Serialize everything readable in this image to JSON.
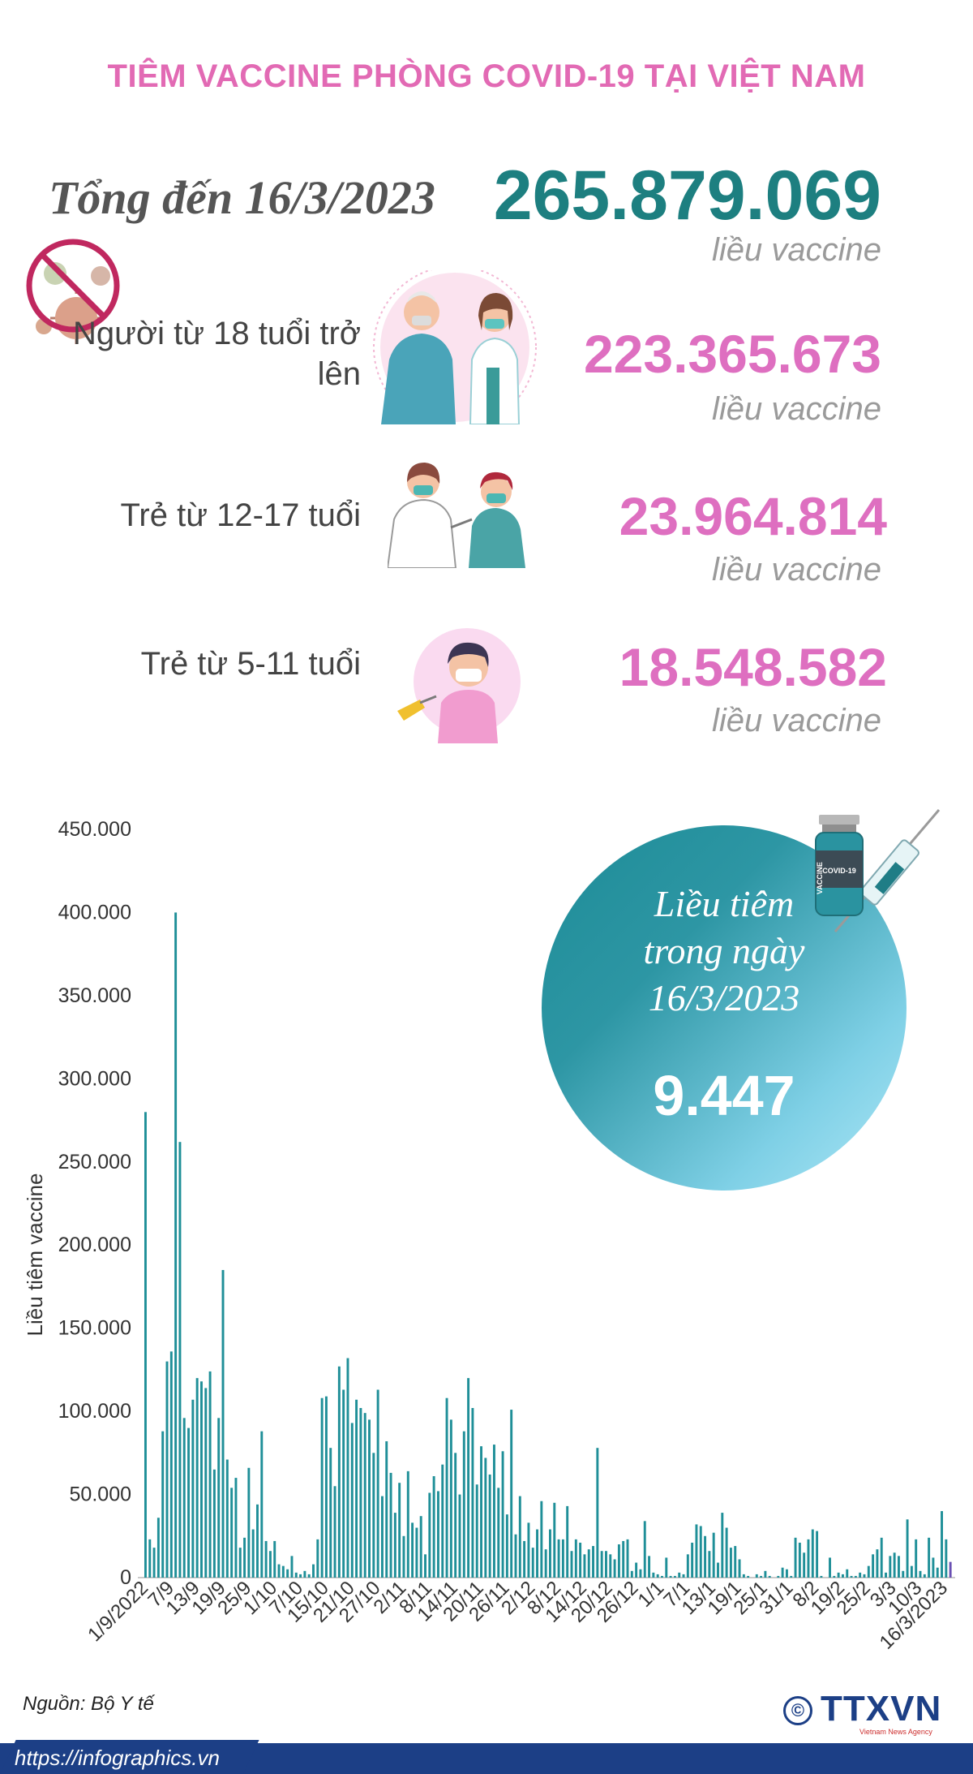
{
  "title": "TIÊM VACCINE PHÒNG COVID-19 TẠI VIỆT NAM",
  "total": {
    "label": "Tổng đến 16/3/2023",
    "value": "265.879.069",
    "unit": "liều vaccine"
  },
  "groups": [
    {
      "label": "Người từ 18 tuổi trở lên",
      "value": "223.365.673",
      "unit": "liều vaccine"
    },
    {
      "label": "Trẻ từ 12-17 tuổi",
      "value": "23.964.814",
      "unit": "liều vaccine"
    },
    {
      "label": "Trẻ từ 5-11 tuổi",
      "value": "18.548.582",
      "unit": "liều vaccine"
    }
  ],
  "daily": {
    "label_lines": [
      "Liều tiêm",
      "trong ngày",
      "16/3/2023"
    ],
    "value": "9.447"
  },
  "vial_label": "COVID-19",
  "vial_side_label": "VACCINE",
  "source": "Nguồn: Bộ Y tế",
  "footer": {
    "url": "https://infographics.vn",
    "brand": "TTXVN",
    "brand_sub": "Vietnam News Agency",
    "copyright": "©"
  },
  "colors": {
    "title": "#e26ab4",
    "total": "#1d7f80",
    "group_value": "#de6fc0",
    "bar": "#1f8f98",
    "footer": "#1c3f86"
  },
  "chart_data": {
    "type": "bar",
    "ylabel": "Liều tiêm vaccine",
    "xlabel": "",
    "ylim": [
      0,
      450000
    ],
    "yticks": [
      0,
      50000,
      100000,
      150000,
      200000,
      250000,
      300000,
      350000,
      400000,
      450000
    ],
    "ytick_labels": [
      "0",
      "50.000",
      "100.000",
      "150.000",
      "200.000",
      "250.000",
      "300.000",
      "350.000",
      "400.000",
      "450.000"
    ],
    "xtick_labels": [
      "1/9/2022",
      "7/9",
      "13/9",
      "19/9",
      "25/9",
      "1/10",
      "7/10",
      "15/10",
      "21/10",
      "27/10",
      "2/11",
      "8/11",
      "14/11",
      "20/11",
      "26/11",
      "2/12",
      "8/12",
      "14/12",
      "20/12",
      "26/12",
      "1/1",
      "7/1",
      "13/1",
      "19/1",
      "25/1",
      "31/1",
      "8/2",
      "19/2",
      "25/2",
      "3/3",
      "10/3",
      "16/3/2023"
    ],
    "values": [
      280000,
      23000,
      18000,
      36000,
      88000,
      130000,
      136000,
      400000,
      262000,
      96000,
      90000,
      107000,
      120000,
      118000,
      114000,
      124000,
      65000,
      96000,
      185000,
      71000,
      54000,
      60000,
      18000,
      24000,
      66000,
      29000,
      44000,
      88000,
      22000,
      16000,
      22000,
      8000,
      7000,
      5000,
      13000,
      3000,
      2000,
      4000,
      2000,
      8000,
      23000,
      108000,
      109000,
      78000,
      55000,
      127000,
      113000,
      132000,
      93000,
      107000,
      102000,
      99000,
      95000,
      75000,
      113000,
      49000,
      82000,
      63000,
      39000,
      57000,
      25000,
      64000,
      33000,
      30000,
      37000,
      14000,
      51000,
      61000,
      52000,
      68000,
      108000,
      95000,
      75000,
      50000,
      88000,
      120000,
      102000,
      56000,
      79000,
      72000,
      62000,
      80000,
      54000,
      76000,
      38000,
      101000,
      26000,
      49000,
      22000,
      33000,
      18000,
      29000,
      46000,
      17000,
      29000,
      45000,
      23000,
      23000,
      43000,
      16000,
      23000,
      21000,
      14000,
      17000,
      19000,
      78000,
      16000,
      16000,
      14000,
      11000,
      20000,
      22000,
      23000,
      4000,
      9000,
      5000,
      34000,
      13000,
      3000,
      2000,
      1000,
      12000,
      1000,
      1000,
      3000,
      2000,
      14000,
      21000,
      32000,
      31000,
      25000,
      16000,
      27000,
      9000,
      39000,
      30000,
      18000,
      19000,
      11000,
      2000,
      1000,
      0,
      2000,
      1000,
      4000,
      1000,
      0,
      1000,
      6000,
      5000,
      1000,
      24000,
      21000,
      15000,
      23000,
      29000,
      28000,
      1000,
      0,
      12000,
      1000,
      3000,
      2000,
      5000,
      1000,
      1000,
      3000,
      2000,
      7000,
      14000,
      17000,
      24000,
      3000,
      13000,
      15000,
      13000,
      4000,
      35000,
      7000,
      23000,
      4000,
      2000,
      24000,
      12000,
      6000,
      40000,
      23000,
      9447
    ]
  }
}
